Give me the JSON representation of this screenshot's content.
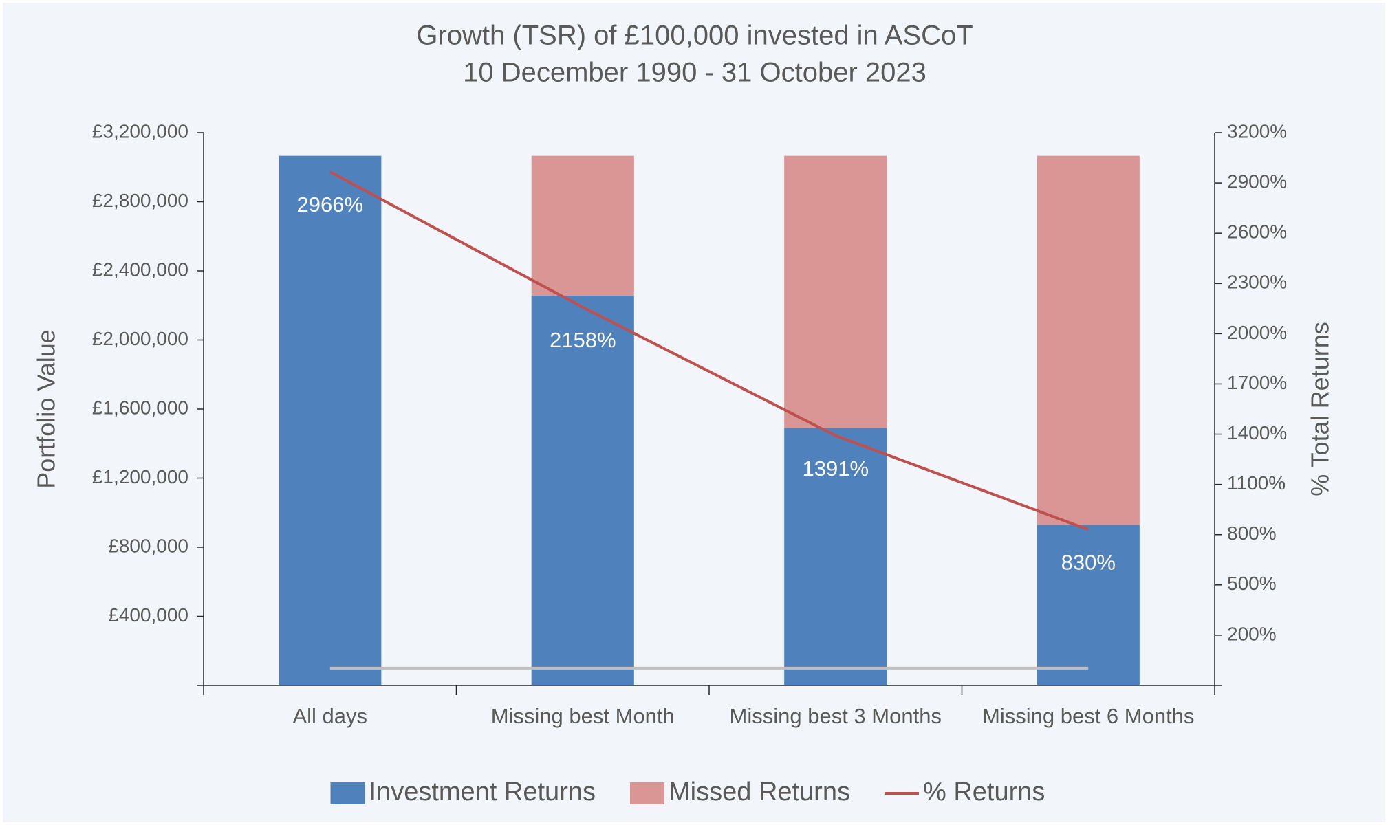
{
  "chart_data": {
    "type": "bar",
    "title": "Growth (TSR) of £100,000 invested in ASCoT",
    "subtitle": "10 December 1990 - 31 October 2023",
    "y_label": "Portfolio Value",
    "y2_label": "% Total Returns",
    "categories": [
      "All days",
      "Missing best Month",
      "Missing best 3 Months",
      "Missing best 6 Months"
    ],
    "series": [
      {
        "name": "Investment Returns",
        "type": "bar",
        "color": "#4f81bd",
        "values": [
          3066000,
          2258000,
          1491000,
          930000
        ]
      },
      {
        "name": "Missed Returns",
        "type": "bar",
        "color": "#d99694",
        "values": [
          0,
          808000,
          1575000,
          2136000
        ]
      },
      {
        "name": "% Returns",
        "type": "line",
        "axis": "y2",
        "color": "#c0504d",
        "values": [
          2966,
          2158,
          1391,
          830
        ],
        "value_labels": [
          "2966%",
          "2158%",
          "1391%",
          "830%"
        ]
      },
      {
        "type": "line",
        "color": "#bfbfbf",
        "values": [
          100000,
          100000,
          100000,
          100000
        ]
      }
    ],
    "ylim": [
      0,
      3200000
    ],
    "yticks": [
      {
        "value": 400000,
        "label": "£400,000"
      },
      {
        "value": 800000,
        "label": "£800,000"
      },
      {
        "value": 1200000,
        "label": "£1,200,000"
      },
      {
        "value": 1600000,
        "label": "£1,600,000"
      },
      {
        "value": 2000000,
        "label": "£2,000,000"
      },
      {
        "value": 2400000,
        "label": "£2,400,000"
      },
      {
        "value": 2800000,
        "label": "£2,800,000"
      },
      {
        "value": 3200000,
        "label": "£3,200,000"
      }
    ],
    "y2lim": [
      -100,
      3200
    ],
    "y2ticks": [
      {
        "value": 200,
        "label": "200%"
      },
      {
        "value": 500,
        "label": "500%"
      },
      {
        "value": 800,
        "label": "800%"
      },
      {
        "value": 1100,
        "label": "1100%"
      },
      {
        "value": 1400,
        "label": "1400%"
      },
      {
        "value": 1700,
        "label": "1700%"
      },
      {
        "value": 2000,
        "label": "2000%"
      },
      {
        "value": 2300,
        "label": "2300%"
      },
      {
        "value": 2600,
        "label": "2600%"
      },
      {
        "value": 2900,
        "label": "2900%"
      },
      {
        "value": 3200,
        "label": "3200%"
      }
    ],
    "grid": false,
    "legend": "bottom"
  }
}
